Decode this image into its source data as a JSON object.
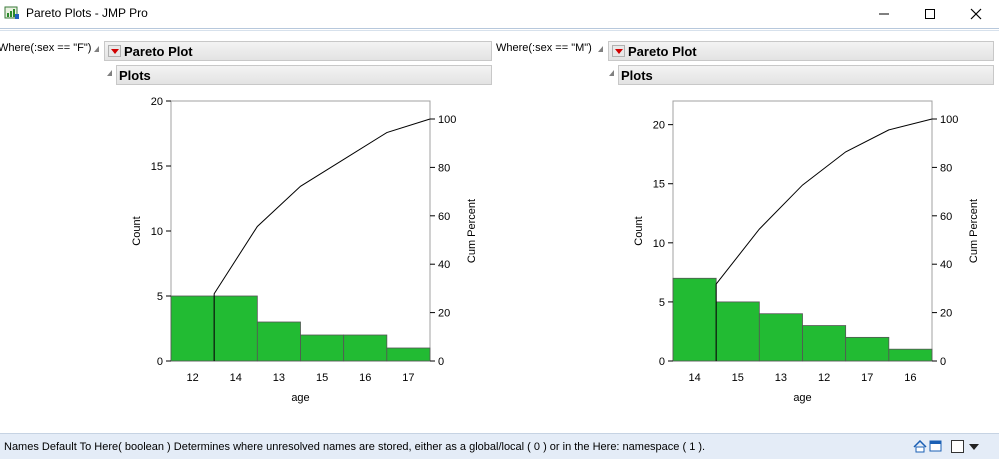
{
  "window": {
    "title": "Pareto Plots - JMP Pro"
  },
  "panels": [
    {
      "where": "Where(:sex == \"F\")",
      "outline_title": "Pareto Plot",
      "sub_title": "Plots"
    },
    {
      "where": "Where(:sex == \"M\")",
      "outline_title": "Pareto Plot",
      "sub_title": "Plots"
    }
  ],
  "chart_data": [
    {
      "type": "bar",
      "categories": [
        "12",
        "14",
        "13",
        "15",
        "16",
        "17"
      ],
      "values": [
        5,
        5,
        3,
        2,
        2,
        1
      ],
      "cum_percent": [
        27.8,
        55.6,
        72.2,
        83.3,
        94.4,
        100
      ],
      "xlabel": "age",
      "ylabel": "Count",
      "y2label": "Cum Percent",
      "ylim": [
        0,
        20
      ],
      "yticks": [
        0,
        5,
        10,
        15,
        20
      ],
      "y2ticks": [
        0,
        20,
        40,
        60,
        80,
        100
      ],
      "bar_color": "#22bb33"
    },
    {
      "type": "bar",
      "categories": [
        "14",
        "15",
        "13",
        "12",
        "17",
        "16"
      ],
      "values": [
        7,
        5,
        4,
        3,
        2,
        1
      ],
      "cum_percent": [
        31.8,
        54.5,
        72.7,
        86.4,
        95.5,
        100
      ],
      "xlabel": "age",
      "ylabel": "Count",
      "y2label": "Cum Percent",
      "ylim": [
        0,
        22
      ],
      "yticks": [
        0,
        5,
        10,
        15,
        20
      ],
      "y2ticks": [
        0,
        20,
        40,
        60,
        80,
        100
      ],
      "bar_color": "#22bb33"
    }
  ],
  "status": {
    "text": "Names Default To Here( boolean )  Determines where unresolved names are stored, either as a global/local ( 0 ) or in the Here: namespace ( 1 )."
  }
}
